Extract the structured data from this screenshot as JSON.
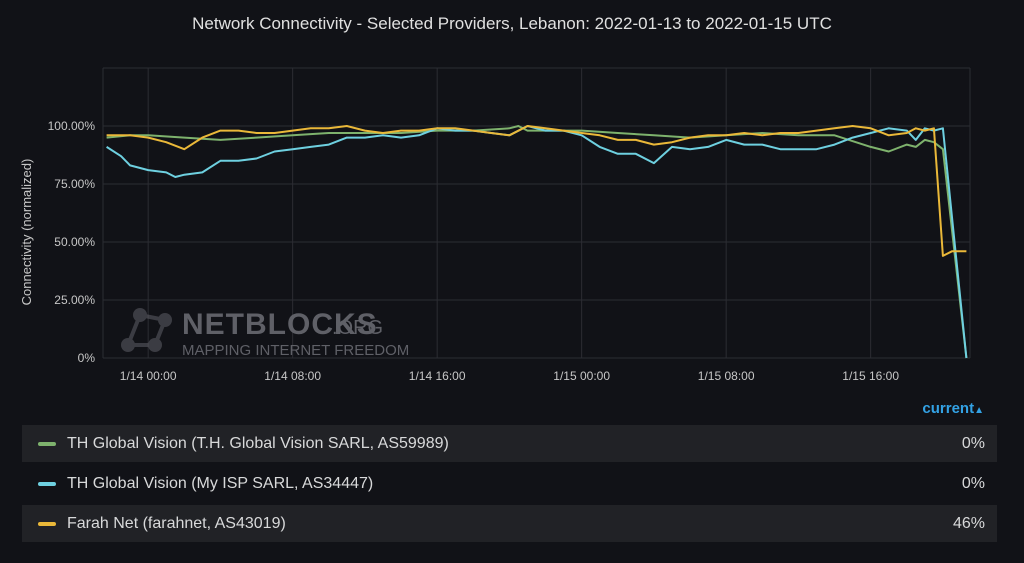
{
  "title": "Network Connectivity - Selected Providers, Lebanon: 2022-01-13 to 2022-01-15 UTC",
  "legend_toggle_label": "current",
  "watermark": {
    "brand": "NETBLOCKS",
    "domain": ".ORG",
    "tagline": "MAPPING INTERNET FREEDOM"
  },
  "colors": {
    "green": "#7eb26d",
    "blue": "#6ed0e0",
    "yellow": "#eab839"
  },
  "legend": [
    {
      "label": "TH Global Vision (T.H. Global Vision SARL, AS59989)",
      "value": "0%",
      "color": "#7eb26d"
    },
    {
      "label": "TH Global Vision (My ISP SARL, AS34447)",
      "value": "0%",
      "color": "#6ed0e0"
    },
    {
      "label": "Farah Net (farahnet, AS43019)",
      "value": "46%",
      "color": "#eab839"
    }
  ],
  "chart_data": {
    "type": "line",
    "title": "Network Connectivity - Selected Providers, Lebanon: 2022-01-13 to 2022-01-15 UTC",
    "xlabel": "",
    "ylabel": "Connectivity (normalized)",
    "x_unit": "hours since 1/14 00:00 UTC",
    "xlim": [
      -2.5,
      45.5
    ],
    "ylim": [
      0,
      125
    ],
    "yticks": [
      "0%",
      "25.00%",
      "50.00%",
      "75.00%",
      "100.00%"
    ],
    "ytick_values": [
      0,
      25,
      50,
      75,
      100
    ],
    "xticks": [
      "1/14 00:00",
      "1/14 08:00",
      "1/14 16:00",
      "1/15 00:00",
      "1/15 08:00",
      "1/15 16:00"
    ],
    "xtick_values": [
      0,
      8,
      16,
      24,
      32,
      40
    ],
    "grid": true,
    "legend_position": "bottom",
    "series": [
      {
        "name": "TH Global Vision (T.H. Global Vision SARL, AS59989)",
        "color": "#7eb26d",
        "x": [
          -2.3,
          -1,
          0,
          2,
          4,
          6,
          8,
          10,
          12,
          14,
          16,
          18,
          20,
          20.5,
          21,
          22,
          24,
          26,
          28,
          30,
          32,
          34,
          36,
          38,
          40,
          41,
          42,
          42.5,
          43,
          43.5,
          44,
          45.3
        ],
        "y": [
          95,
          96,
          96,
          95,
          94,
          95,
          96,
          97,
          97,
          97,
          98,
          98,
          99,
          100,
          98,
          98,
          98,
          97,
          96,
          95,
          96,
          97,
          96,
          96,
          91,
          89,
          92,
          91,
          94,
          93,
          90,
          0
        ]
      },
      {
        "name": "TH Global Vision (My ISP SARL, AS34447)",
        "color": "#6ed0e0",
        "x": [
          -2.3,
          -1.5,
          -1,
          0,
          1,
          1.5,
          2,
          3,
          4,
          5,
          6,
          7,
          8,
          9,
          10,
          11,
          12,
          13,
          14,
          15,
          16,
          17,
          18,
          19,
          20,
          21,
          22,
          23,
          24,
          25,
          26,
          27,
          28,
          29,
          30,
          31,
          32,
          33,
          34,
          35,
          36,
          37,
          38,
          39,
          40,
          41,
          42,
          42.5,
          43,
          43.5,
          44,
          45.3
        ],
        "y": [
          91,
          87,
          83,
          81,
          80,
          78,
          79,
          80,
          85,
          85,
          86,
          89,
          90,
          91,
          92,
          95,
          95,
          96,
          95,
          96,
          99,
          98,
          98,
          97,
          96,
          100,
          98,
          98,
          96,
          91,
          88,
          88,
          84,
          91,
          90,
          91,
          94,
          92,
          92,
          90,
          90,
          90,
          92,
          95,
          97,
          99,
          98,
          94,
          99,
          98,
          99,
          0
        ]
      },
      {
        "name": "Farah Net (farahnet, AS43019)",
        "color": "#eab839",
        "x": [
          -2.3,
          -1,
          0,
          1,
          2,
          3,
          4,
          5,
          6,
          7,
          8,
          9,
          10,
          11,
          12,
          13,
          14,
          15,
          16,
          17,
          18,
          19,
          20,
          21,
          22,
          23,
          24,
          25,
          26,
          27,
          28,
          29,
          30,
          31,
          32,
          33,
          34,
          35,
          36,
          37,
          38,
          39,
          40,
          41,
          42,
          42.5,
          43,
          43.5,
          44,
          44.5,
          45.3
        ],
        "y": [
          96,
          96,
          95,
          93,
          90,
          95,
          98,
          98,
          97,
          97,
          98,
          99,
          99,
          100,
          98,
          97,
          98,
          98,
          99,
          99,
          98,
          97,
          96,
          100,
          99,
          98,
          97,
          96,
          94,
          94,
          92,
          93,
          95,
          96,
          96,
          97,
          96,
          97,
          97,
          98,
          99,
          100,
          99,
          96,
          97,
          99,
          98,
          99,
          44,
          46,
          46
        ]
      }
    ]
  }
}
